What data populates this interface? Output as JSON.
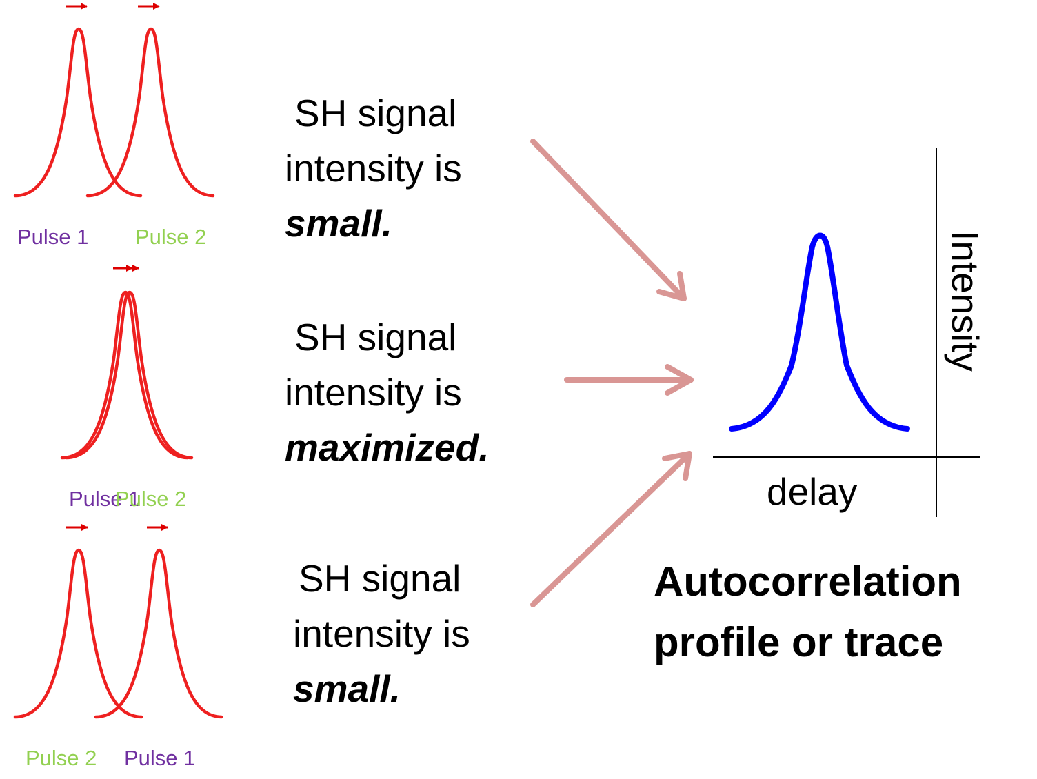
{
  "rows": [
    {
      "labels": [
        {
          "text": "Pulse 1",
          "color": "#7030a0"
        },
        {
          "text": "Pulse 2",
          "color": "#92d050"
        }
      ],
      "statement": {
        "line1": "SH signal",
        "line2": "intensity is",
        "emphasis": "small",
        "punct": "."
      }
    },
    {
      "labels": [
        {
          "text": "Pulse 1",
          "color": "#7030a0"
        },
        {
          "text": "Pulse 2",
          "color": "#92d050"
        }
      ],
      "statement": {
        "line1": "SH signal",
        "line2": "intensity is",
        "emphasis": "maximized",
        "punct": "."
      }
    },
    {
      "labels": [
        {
          "text": "Pulse 2",
          "color": "#92d050"
        },
        {
          "text": "Pulse 1",
          "color": "#7030a0"
        }
      ],
      "statement": {
        "line1": "SH signal",
        "line2": "intensity is",
        "emphasis": "small.",
        "punct": ""
      }
    }
  ],
  "trace": {
    "x_label": "delay",
    "y_label": "Intensity",
    "curve_color": "#0000ff"
  },
  "title": {
    "line1": "Autocorrelation",
    "line2": "profile or trace"
  },
  "colors": {
    "pulse": "#ee2020",
    "direction_arrow": "#dd0000",
    "flow_arrow": "#d99694",
    "axis": "#000000"
  }
}
